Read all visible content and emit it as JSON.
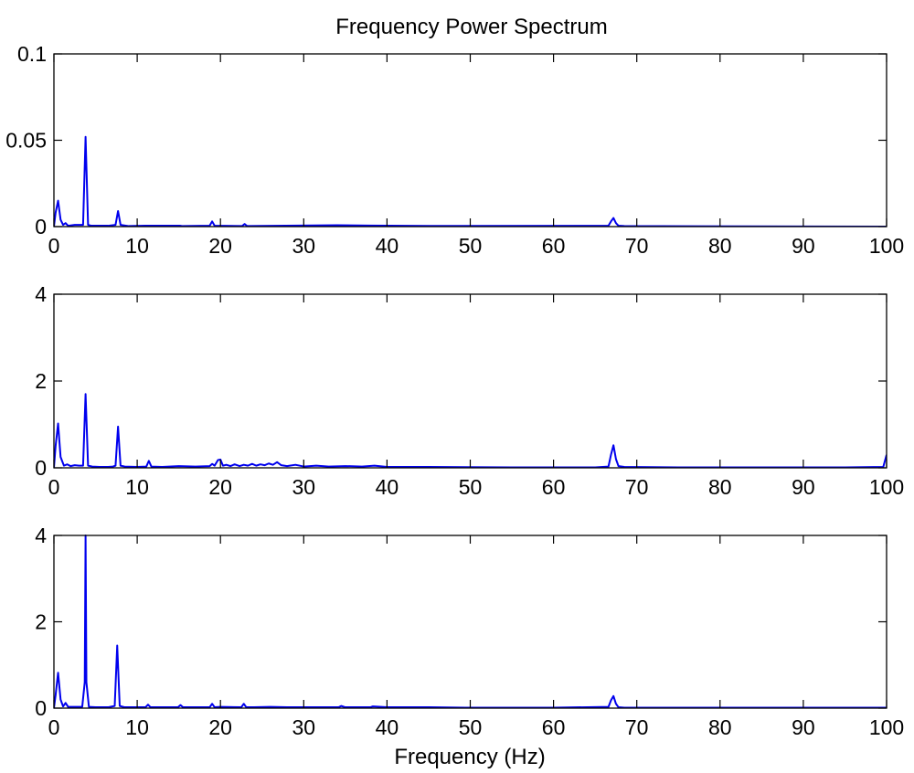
{
  "figure": {
    "title": "Frequency Power Spectrum",
    "xlabel": "Frequency (Hz)"
  },
  "chart_data": [
    {
      "type": "line",
      "title": "Frequency Power Spectrum",
      "xlabel": "",
      "ylabel": "",
      "xlim": [
        0,
        100
      ],
      "ylim": [
        0,
        0.1
      ],
      "xticks": [
        0,
        10,
        20,
        30,
        40,
        50,
        60,
        70,
        80,
        90,
        100
      ],
      "yticks": [
        0,
        0.05,
        0.1
      ],
      "xtick_labels": [
        "0",
        "10",
        "20",
        "30",
        "40",
        "50",
        "60",
        "70",
        "80",
        "90",
        "100"
      ],
      "ytick_labels": [
        "0",
        "0.05",
        "0.1"
      ],
      "grid": false,
      "color": "#0000ee",
      "x": [
        0,
        0.2,
        0.5,
        0.8,
        1.1,
        1.4,
        1.7,
        2.5,
        3.5,
        3.8,
        4.1,
        4.5,
        6.5,
        7.4,
        7.7,
        8.0,
        9,
        11,
        15.2,
        15.5,
        18.7,
        19.0,
        19.3,
        22.6,
        22.9,
        23.2,
        34,
        38,
        45,
        66.6,
        66.9,
        67.2,
        67.5,
        67.8,
        68.5,
        100
      ],
      "y": [
        0,
        0.008,
        0.015,
        0.004,
        0.001,
        0.002,
        0.0005,
        0.001,
        0.001,
        0.052,
        0.001,
        0.0005,
        0.0005,
        0.001,
        0.009,
        0.001,
        0.0003,
        0.0005,
        0.0005,
        0.0003,
        0.0005,
        0.003,
        0.0005,
        0.0003,
        0.0015,
        0.0003,
        0.0008,
        0.0006,
        0.0004,
        0.0005,
        0.003,
        0.005,
        0.002,
        0.0005,
        0.0003,
        0
      ]
    },
    {
      "type": "line",
      "title": "",
      "xlabel": "",
      "ylabel": "",
      "xlim": [
        0,
        100
      ],
      "ylim": [
        0,
        4
      ],
      "xticks": [
        0,
        10,
        20,
        30,
        40,
        50,
        60,
        70,
        80,
        90,
        100
      ],
      "yticks": [
        0,
        2,
        4
      ],
      "xtick_labels": [
        "0",
        "10",
        "20",
        "30",
        "40",
        "50",
        "60",
        "70",
        "80",
        "90",
        "100"
      ],
      "ytick_labels": [
        "0",
        "2",
        "4"
      ],
      "grid": false,
      "color": "#0000ee",
      "x": [
        0,
        0.2,
        0.5,
        0.8,
        1.2,
        1.6,
        2.0,
        2.5,
        3.0,
        3.5,
        3.8,
        4.1,
        4.6,
        5.5,
        6.5,
        7.1,
        7.4,
        7.7,
        8.0,
        8.5,
        10,
        11.1,
        11.4,
        11.7,
        13,
        15,
        17,
        18.7,
        19.0,
        19.3,
        19.7,
        20.0,
        20.3,
        20.7,
        21.2,
        21.7,
        22.3,
        22.8,
        23.3,
        23.8,
        24.3,
        24.8,
        25.3,
        25.8,
        26.3,
        26.8,
        27.3,
        28.0,
        29.0,
        30.0,
        31.5,
        33,
        35,
        37,
        38.5,
        40,
        45,
        55,
        65,
        66.6,
        66.9,
        67.2,
        67.5,
        67.8,
        68.5,
        75,
        85,
        95,
        99.6,
        100
      ],
      "y": [
        0,
        0.5,
        1.02,
        0.25,
        0.05,
        0.08,
        0.04,
        0.06,
        0.05,
        0.05,
        1.7,
        0.05,
        0.03,
        0.02,
        0.02,
        0.03,
        0.05,
        0.95,
        0.05,
        0.03,
        0.02,
        0.03,
        0.16,
        0.03,
        0.02,
        0.04,
        0.03,
        0.04,
        0.09,
        0.05,
        0.18,
        0.19,
        0.05,
        0.07,
        0.04,
        0.08,
        0.04,
        0.07,
        0.05,
        0.09,
        0.05,
        0.08,
        0.06,
        0.1,
        0.07,
        0.13,
        0.06,
        0.04,
        0.07,
        0.03,
        0.05,
        0.03,
        0.04,
        0.03,
        0.05,
        0.02,
        0.02,
        0.01,
        0.01,
        0.03,
        0.3,
        0.52,
        0.2,
        0.04,
        0.02,
        0.01,
        0.01,
        0.01,
        0.02,
        0.3
      ]
    },
    {
      "type": "line",
      "title": "",
      "xlabel": "Frequency (Hz)",
      "ylabel": "",
      "xlim": [
        0,
        100
      ],
      "ylim": [
        0,
        4
      ],
      "xticks": [
        0,
        10,
        20,
        30,
        40,
        50,
        60,
        70,
        80,
        90,
        100
      ],
      "yticks": [
        0,
        2,
        4
      ],
      "xtick_labels": [
        "0",
        "10",
        "20",
        "30",
        "40",
        "50",
        "60",
        "70",
        "80",
        "90",
        "100"
      ],
      "ytick_labels": [
        "0",
        "2",
        "4"
      ],
      "grid": false,
      "color": "#0000ee",
      "x": [
        0,
        0.2,
        0.5,
        0.8,
        1.1,
        1.4,
        1.7,
        2.5,
        3.4,
        3.7,
        3.8,
        3.9,
        4.2,
        5.0,
        6.5,
        7.3,
        7.6,
        7.9,
        8.5,
        10,
        11.0,
        11.3,
        11.6,
        13,
        14.9,
        15.2,
        15.5,
        17,
        18.7,
        19.0,
        19.3,
        20,
        22.5,
        22.8,
        23.1,
        24,
        26,
        28,
        30,
        34.2,
        34.5,
        35,
        38,
        38.3,
        40,
        45,
        50,
        60,
        66.6,
        66.9,
        67.2,
        67.5,
        67.8,
        68.5,
        75,
        100
      ],
      "y": [
        0,
        0.3,
        0.82,
        0.2,
        0.04,
        0.12,
        0.03,
        0.03,
        0.03,
        0.6,
        4.0,
        0.6,
        0.03,
        0.02,
        0.02,
        0.05,
        1.45,
        0.05,
        0.02,
        0.02,
        0.02,
        0.08,
        0.02,
        0.02,
        0.02,
        0.07,
        0.02,
        0.02,
        0.02,
        0.1,
        0.02,
        0.03,
        0.02,
        0.1,
        0.02,
        0.02,
        0.03,
        0.02,
        0.02,
        0.02,
        0.05,
        0.02,
        0.02,
        0.04,
        0.02,
        0.02,
        0.01,
        0.01,
        0.03,
        0.18,
        0.28,
        0.1,
        0.02,
        0.01,
        0.01,
        0.01
      ]
    }
  ]
}
